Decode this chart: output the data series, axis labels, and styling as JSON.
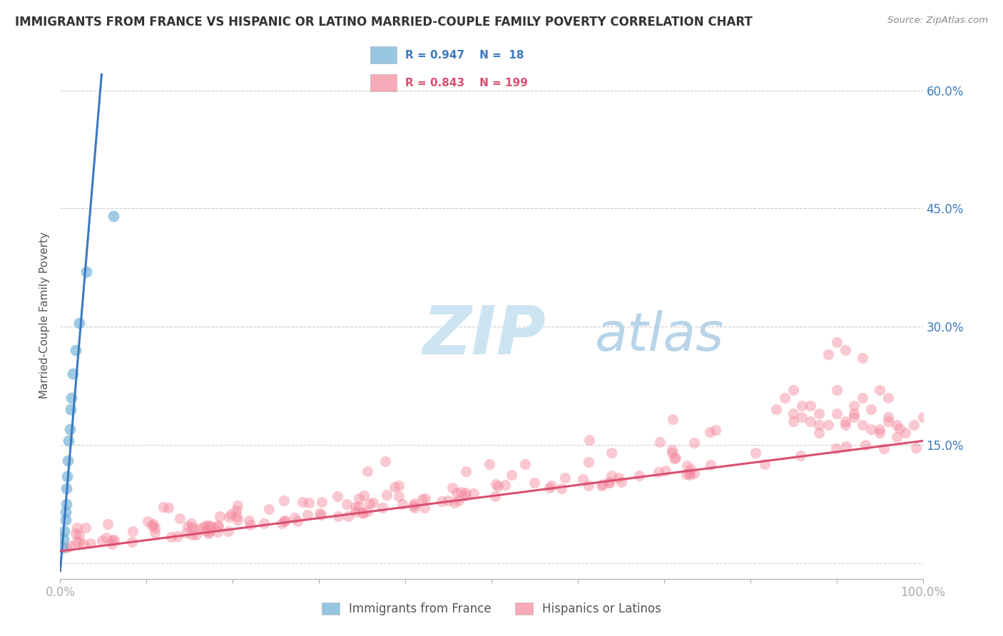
{
  "title": "IMMIGRANTS FROM FRANCE VS HISPANIC OR LATINO MARRIED-COUPLE FAMILY POVERTY CORRELATION CHART",
  "source": "Source: ZipAtlas.com",
  "ylabel": "Married-Couple Family Poverty",
  "xlim": [
    0,
    1.0
  ],
  "ylim": [
    -0.02,
    0.65
  ],
  "xticks": [
    0.0,
    0.1,
    0.2,
    0.3,
    0.4,
    0.5,
    0.6,
    0.7,
    0.8,
    0.9,
    1.0
  ],
  "xticklabels": [
    "0.0%",
    "",
    "",
    "",
    "",
    "",
    "",
    "",
    "",
    "",
    "100.0%"
  ],
  "ytick_positions": [
    0.0,
    0.15,
    0.3,
    0.45,
    0.6
  ],
  "yticklabels_right": [
    "",
    "15.0%",
    "30.0%",
    "45.0%",
    "60.0%"
  ],
  "legend_r1": "R = 0.947",
  "legend_n1": "N =  18",
  "legend_r2": "R = 0.843",
  "legend_n2": "N = 199",
  "color_blue": "#6aaed6",
  "color_pink": "#f4869a",
  "color_blue_dark": "#3a7abf",
  "color_pink_dark": "#d94f70",
  "watermark_zip": "ZIP",
  "watermark_atlas": "atlas",
  "watermark_color_zip": "#cce0f0",
  "watermark_color_atlas": "#b8d4e8",
  "background_color": "#ffffff",
  "grid_color": "#cccccc",
  "blue_x": [
    0.003,
    0.004,
    0.005,
    0.006,
    0.006,
    0.007,
    0.007,
    0.008,
    0.009,
    0.01,
    0.011,
    0.012,
    0.013,
    0.015,
    0.018,
    0.022,
    0.03,
    0.062
  ],
  "blue_y": [
    0.02,
    0.03,
    0.04,
    0.055,
    0.065,
    0.075,
    0.095,
    0.11,
    0.13,
    0.155,
    0.17,
    0.195,
    0.21,
    0.24,
    0.27,
    0.305,
    0.37,
    0.44
  ],
  "blue_trend_x": [
    0.0,
    0.048
  ],
  "blue_trend_y": [
    -0.01,
    0.62
  ],
  "pink_trend_x": [
    0.0,
    1.0
  ],
  "pink_trend_y": [
    0.015,
    0.155
  ]
}
